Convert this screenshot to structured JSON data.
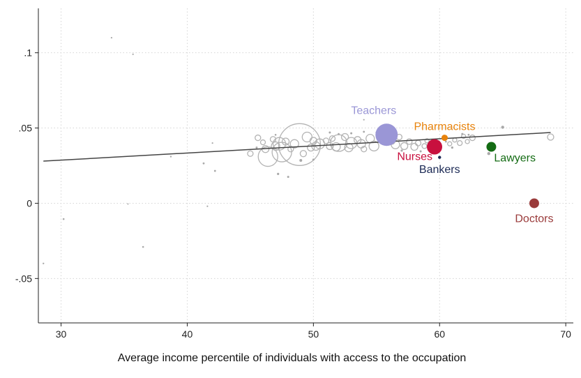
{
  "chart_data": {
    "type": "scatter",
    "title": "",
    "xlabel": "Average income percentile of individuals with access to the occupation",
    "ylabel": "",
    "xlim": [
      28.2,
      70.6
    ],
    "ylim": [
      -0.0795,
      0.1295
    ],
    "x_ticks": [
      30,
      40,
      50,
      60,
      70
    ],
    "x_tick_labels": [
      "30",
      "40",
      "50",
      "60",
      "70"
    ],
    "y_ticks": [
      -0.05,
      0,
      0.05,
      0.1
    ],
    "y_tick_labels": [
      "-.05",
      "0",
      ".05",
      ".1"
    ],
    "grid": true,
    "fit_line": {
      "x": [
        28.6,
        68.8
      ],
      "y": [
        0.028,
        0.047
      ],
      "color": "#444444"
    },
    "highlighted": [
      {
        "name": "Teachers",
        "x": 55.8,
        "y": 0.0455,
        "size": 16,
        "color": "#9a96d6",
        "label_pos": "above"
      },
      {
        "name": "Pharmacists",
        "x": 60.4,
        "y": 0.0435,
        "size": 4.5,
        "color": "#e8830c",
        "label_pos": "above"
      },
      {
        "name": "Nurses",
        "x": 59.6,
        "y": 0.0375,
        "size": 11,
        "color": "#c8103e",
        "label_pos": "left"
      },
      {
        "name": "Bankers",
        "x": 60.0,
        "y": 0.0305,
        "size": 2.2,
        "color": "#1c2a55",
        "label_pos": "below"
      },
      {
        "name": "Lawyers",
        "x": 64.1,
        "y": 0.0375,
        "size": 7,
        "color": "#136b13",
        "label_pos": "below-right"
      },
      {
        "name": "Doctors",
        "x": 67.5,
        "y": 0.0,
        "size": 7,
        "color": "#9a3b3b",
        "label_pos": "below"
      }
    ],
    "other_points": [
      {
        "x": 28.6,
        "y": -0.04,
        "s": 1.2
      },
      {
        "x": 30.2,
        "y": -0.0105,
        "s": 1.3
      },
      {
        "x": 34.0,
        "y": 0.11,
        "s": 1.1
      },
      {
        "x": 35.7,
        "y": 0.099,
        "s": 1.1
      },
      {
        "x": 35.3,
        "y": -0.0005,
        "s": 1.0
      },
      {
        "x": 36.5,
        "y": -0.029,
        "s": 1.3
      },
      {
        "x": 38.7,
        "y": 0.031,
        "s": 1.2
      },
      {
        "x": 41.3,
        "y": 0.0265,
        "s": 1.4
      },
      {
        "x": 41.6,
        "y": -0.002,
        "s": 1.1
      },
      {
        "x": 42.0,
        "y": 0.04,
        "s": 1.1
      },
      {
        "x": 42.2,
        "y": 0.0215,
        "s": 1.4
      },
      {
        "x": 47.2,
        "y": 0.0195,
        "s": 1.6
      },
      {
        "x": 48.0,
        "y": 0.0175,
        "s": 1.5
      },
      {
        "x": 54.0,
        "y": 0.0555,
        "s": 1.1
      },
      {
        "x": 65.0,
        "y": 0.0505,
        "s": 2.2
      },
      {
        "x": 68.8,
        "y": 0.044,
        "s": 4.5
      },
      {
        "x": 45.0,
        "y": 0.033,
        "s": 4
      },
      {
        "x": 45.6,
        "y": 0.0435,
        "s": 4
      },
      {
        "x": 46.0,
        "y": 0.0405,
        "s": 3.5
      },
      {
        "x": 46.2,
        "y": 0.036,
        "s": 5
      },
      {
        "x": 46.4,
        "y": 0.031,
        "s": 14
      },
      {
        "x": 46.8,
        "y": 0.0425,
        "s": 4
      },
      {
        "x": 47.0,
        "y": 0.038,
        "s": 6
      },
      {
        "x": 47.3,
        "y": 0.0395,
        "s": 9
      },
      {
        "x": 47.5,
        "y": 0.034,
        "s": 14
      },
      {
        "x": 47.8,
        "y": 0.041,
        "s": 5
      },
      {
        "x": 48.2,
        "y": 0.036,
        "s": 4
      },
      {
        "x": 48.5,
        "y": 0.0395,
        "s": 6
      },
      {
        "x": 48.9,
        "y": 0.039,
        "s": 30
      },
      {
        "x": 49.2,
        "y": 0.033,
        "s": 4.5
      },
      {
        "x": 49.5,
        "y": 0.044,
        "s": 7
      },
      {
        "x": 49.8,
        "y": 0.037,
        "s": 5
      },
      {
        "x": 50.0,
        "y": 0.0415,
        "s": 5
      },
      {
        "x": 50.2,
        "y": 0.038,
        "s": 6
      },
      {
        "x": 50.5,
        "y": 0.0395,
        "s": 7
      },
      {
        "x": 51.0,
        "y": 0.0415,
        "s": 4
      },
      {
        "x": 51.3,
        "y": 0.038,
        "s": 5
      },
      {
        "x": 51.5,
        "y": 0.043,
        "s": 4
      },
      {
        "x": 51.8,
        "y": 0.0375,
        "s": 6
      },
      {
        "x": 52.0,
        "y": 0.04,
        "s": 12
      },
      {
        "x": 52.5,
        "y": 0.044,
        "s": 5
      },
      {
        "x": 52.8,
        "y": 0.037,
        "s": 6
      },
      {
        "x": 53.0,
        "y": 0.04,
        "s": 8
      },
      {
        "x": 53.5,
        "y": 0.042,
        "s": 5
      },
      {
        "x": 53.8,
        "y": 0.0395,
        "s": 6
      },
      {
        "x": 54.0,
        "y": 0.036,
        "s": 4
      },
      {
        "x": 54.5,
        "y": 0.043,
        "s": 6
      },
      {
        "x": 54.8,
        "y": 0.038,
        "s": 7
      },
      {
        "x": 56.2,
        "y": 0.0415,
        "s": 5
      },
      {
        "x": 56.5,
        "y": 0.039,
        "s": 6
      },
      {
        "x": 56.8,
        "y": 0.044,
        "s": 4
      },
      {
        "x": 57.2,
        "y": 0.038,
        "s": 5
      },
      {
        "x": 57.6,
        "y": 0.041,
        "s": 4
      },
      {
        "x": 58.0,
        "y": 0.0375,
        "s": 5
      },
      {
        "x": 58.3,
        "y": 0.04,
        "s": 4
      },
      {
        "x": 58.8,
        "y": 0.038,
        "s": 3.5
      },
      {
        "x": 59.0,
        "y": 0.0415,
        "s": 3
      },
      {
        "x": 60.8,
        "y": 0.0395,
        "s": 3
      },
      {
        "x": 61.2,
        "y": 0.042,
        "s": 3
      },
      {
        "x": 61.6,
        "y": 0.04,
        "s": 3.5
      },
      {
        "x": 61.9,
        "y": 0.0445,
        "s": 3
      },
      {
        "x": 62.2,
        "y": 0.041,
        "s": 3
      },
      {
        "x": 62.6,
        "y": 0.0435,
        "s": 4
      },
      {
        "x": 49.0,
        "y": 0.0285,
        "s": 2
      },
      {
        "x": 50.0,
        "y": 0.029,
        "s": 1.5
      },
      {
        "x": 51.3,
        "y": 0.047,
        "s": 1.5
      },
      {
        "x": 52.0,
        "y": 0.046,
        "s": 1.4
      },
      {
        "x": 53.0,
        "y": 0.0465,
        "s": 1.5
      },
      {
        "x": 54.0,
        "y": 0.0475,
        "s": 1.4
      },
      {
        "x": 55.0,
        "y": 0.047,
        "s": 1.4
      },
      {
        "x": 57.0,
        "y": 0.035,
        "s": 1.6
      },
      {
        "x": 58.5,
        "y": 0.0345,
        "s": 1.5
      },
      {
        "x": 59.8,
        "y": 0.0355,
        "s": 1.5
      },
      {
        "x": 60.5,
        "y": 0.041,
        "s": 1.4
      },
      {
        "x": 61.0,
        "y": 0.037,
        "s": 1.6
      },
      {
        "x": 61.8,
        "y": 0.046,
        "s": 1.5
      },
      {
        "x": 62.3,
        "y": 0.0455,
        "s": 1.4
      },
      {
        "x": 63.9,
        "y": 0.033,
        "s": 2.2
      },
      {
        "x": 47.0,
        "y": 0.0455,
        "s": 1.3
      },
      {
        "x": 45.5,
        "y": 0.037,
        "s": 1.5
      }
    ]
  }
}
